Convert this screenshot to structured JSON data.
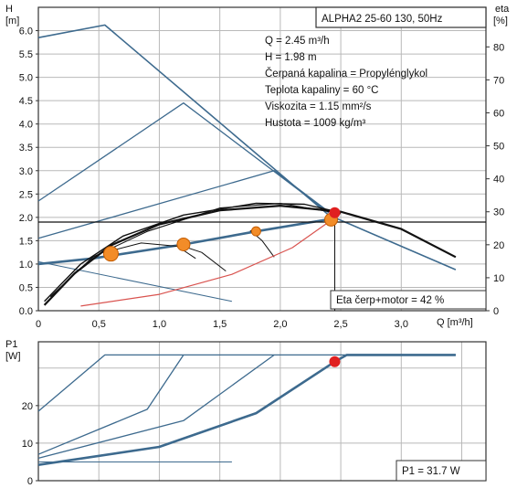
{
  "chart_data": [
    {
      "type": "line",
      "title": "ALPHA2 25-60 130, 50Hz",
      "y_label": [
        "H",
        "[m]"
      ],
      "y2_label": [
        "eta",
        "[%]"
      ],
      "x_label": "Q [m³/h]",
      "xlim": [
        0,
        3.7
      ],
      "ylim": [
        0,
        6.5
      ],
      "y2lim": [
        0,
        92
      ],
      "x_ticks": [
        "0",
        "0,5",
        "1,0",
        "1,5",
        "2,0",
        "2,5",
        "3,0"
      ],
      "y_ticks": [
        "0.0",
        "0.5",
        "1.0",
        "1.5",
        "2.0",
        "2.5",
        "3.0",
        "3.5",
        "4.0",
        "4.5",
        "5.0",
        "5.5",
        "6.0"
      ],
      "y2_ticks": [
        "0",
        "10",
        "20",
        "30",
        "40",
        "50",
        "60",
        "70",
        "80"
      ],
      "grid": true,
      "info_lines": [
        "Q = 2.45 m³/h",
        "H = 1.98 m",
        "Čerpaná kapalina = Propylénglykol",
        "Teplota kapaliny = 60 °C",
        "Viskozita = 1.15 mm²/s",
        "Hustota = 1009 kg/m³"
      ],
      "eta_label": "Eta čerp+motor = 42 %",
      "series": [
        {
          "color": "#3d6a8e",
          "width": 1.6,
          "points": [
            [
              0,
              5.85
            ],
            [
              0.55,
              6.12
            ],
            [
              2.4,
              2.05
            ],
            [
              3.45,
              0.88
            ]
          ]
        },
        {
          "color": "#3d6a8e",
          "width": 1.3,
          "points": [
            [
              0,
              2.35
            ],
            [
              1.2,
              4.45
            ],
            [
              2.4,
              2.1
            ]
          ]
        },
        {
          "color": "#3d6a8e",
          "width": 1.3,
          "points": [
            [
              0,
              1.55
            ],
            [
              1.95,
              3.0
            ],
            [
              2.4,
              2.12
            ]
          ]
        },
        {
          "color": "#3d6a8e",
          "width": 2.6,
          "points": [
            [
              0,
              1.0
            ],
            [
              0.45,
              1.12
            ],
            [
              1.2,
              1.42
            ],
            [
              1.8,
              1.7
            ],
            [
              2.45,
              1.98
            ]
          ]
        },
        {
          "color": "#3d6a8e",
          "width": 1.0,
          "points": [
            [
              0,
              1.05
            ],
            [
              1.6,
              0.2
            ]
          ]
        },
        {
          "color": "#111111",
          "width": 2.2,
          "points": [
            [
              0.05,
              0.12
            ],
            [
              0.3,
              0.8
            ],
            [
              0.6,
              1.4
            ],
            [
              1.0,
              1.85
            ],
            [
              1.5,
              2.15
            ],
            [
              2.0,
              2.25
            ],
            [
              2.5,
              2.12
            ],
            [
              3.0,
              1.75
            ],
            [
              3.45,
              1.15
            ]
          ]
        },
        {
          "color": "#111111",
          "width": 1.4,
          "points": [
            [
              0.05,
              0.2
            ],
            [
              0.35,
              1.0
            ],
            [
              0.7,
              1.6
            ],
            [
              1.2,
              2.05
            ],
            [
              1.8,
              2.3
            ],
            [
              2.2,
              2.28
            ],
            [
              2.5,
              2.1
            ]
          ]
        },
        {
          "color": "#111111",
          "width": 1.1,
          "points": [
            [
              0.1,
              0.3
            ],
            [
              0.45,
              1.15
            ],
            [
              0.9,
              1.7
            ],
            [
              1.5,
              2.2
            ],
            [
              2.0,
              2.3
            ],
            [
              2.5,
              2.08
            ]
          ]
        },
        {
          "color": "#111111",
          "width": 1.0,
          "points": [
            [
              0.55,
              1.25
            ],
            [
              0.85,
              1.45
            ],
            [
              1.15,
              1.38
            ],
            [
              1.3,
              1.12
            ]
          ]
        },
        {
          "color": "#111111",
          "width": 1.0,
          "points": [
            [
              1.15,
              1.42
            ],
            [
              1.35,
              1.25
            ],
            [
              1.55,
              0.85
            ]
          ]
        },
        {
          "color": "#111111",
          "width": 1.0,
          "points": [
            [
              1.75,
              1.72
            ],
            [
              1.85,
              1.5
            ],
            [
              1.95,
              1.15
            ]
          ]
        },
        {
          "color": "#d9534f",
          "width": 1.2,
          "points": [
            [
              0.35,
              0.1
            ],
            [
              1.0,
              0.35
            ],
            [
              1.6,
              0.78
            ],
            [
              2.1,
              1.35
            ],
            [
              2.4,
              1.9
            ]
          ]
        },
        {
          "color": "#111111",
          "width": 1.2,
          "points": [
            [
              0,
              1.9
            ],
            [
              3.7,
              1.9
            ]
          ]
        },
        {
          "color": "#111111",
          "width": 1.0,
          "points": [
            [
              2.45,
              1.98
            ],
            [
              2.45,
              0
            ]
          ]
        }
      ],
      "markers": [
        {
          "x": 0.6,
          "y": 1.22,
          "color": "#f28c28",
          "r": 8
        },
        {
          "x": 1.2,
          "y": 1.42,
          "color": "#f28c28",
          "r": 7
        },
        {
          "x": 1.8,
          "y": 1.7,
          "color": "#f28c28",
          "r": 5
        },
        {
          "x": 2.42,
          "y": 1.95,
          "color": "#f28c28",
          "r": 7
        },
        {
          "x": 2.45,
          "y": 2.1,
          "color": "#e02020",
          "r": 6
        }
      ]
    },
    {
      "type": "line",
      "y_label": [
        "P1",
        "[W]"
      ],
      "xlim": [
        0,
        3.7
      ],
      "ylim": [
        0,
        37
      ],
      "y_ticks": [
        "0",
        "10",
        "20"
      ],
      "grid": true,
      "p1_label": "P1 = 31.7 W",
      "series": [
        {
          "color": "#3d6a8e",
          "width": 1.3,
          "points": [
            [
              0,
              18.5
            ],
            [
              0.55,
              33.5
            ],
            [
              3.45,
              33.5
            ]
          ]
        },
        {
          "color": "#3d6a8e",
          "width": 1.3,
          "points": [
            [
              0,
              7.0
            ],
            [
              0.9,
              19
            ],
            [
              1.2,
              33.5
            ]
          ]
        },
        {
          "color": "#3d6a8e",
          "width": 1.3,
          "points": [
            [
              0,
              6.0
            ],
            [
              1.2,
              16
            ],
            [
              1.95,
              33.5
            ]
          ]
        },
        {
          "color": "#3d6a8e",
          "width": 2.6,
          "points": [
            [
              0,
              4.2
            ],
            [
              1.0,
              9
            ],
            [
              1.8,
              18
            ],
            [
              2.45,
              31.7
            ],
            [
              2.55,
              33.5
            ],
            [
              3.45,
              33.5
            ]
          ]
        },
        {
          "color": "#3d6a8e",
          "width": 1.0,
          "points": [
            [
              0,
              5.0
            ],
            [
              1.6,
              5.0
            ]
          ]
        }
      ],
      "markers": [
        {
          "x": 2.45,
          "y": 31.7,
          "color": "#e02020",
          "r": 6
        }
      ]
    }
  ]
}
